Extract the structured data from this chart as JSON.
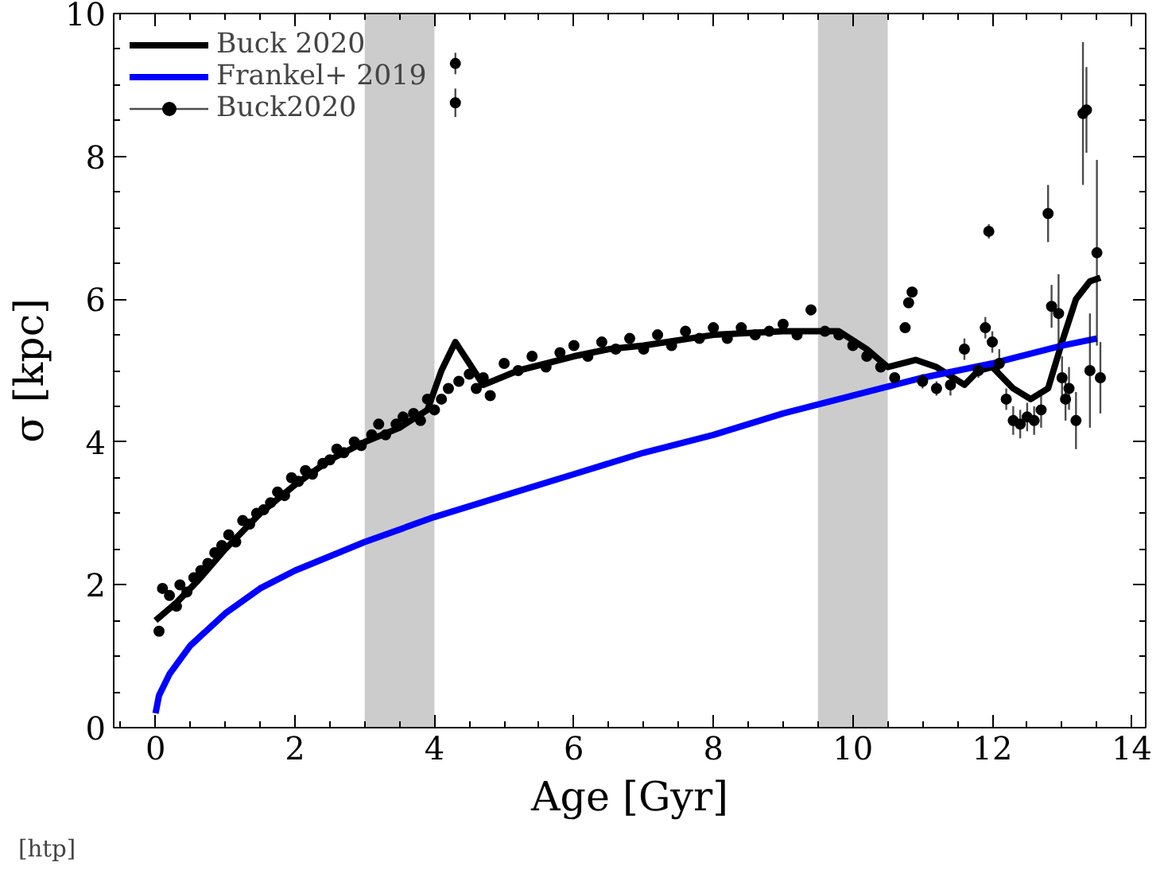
{
  "chart_data": {
    "type": "line",
    "xlabel": "Age [Gyr]",
    "ylabel": "σ [kpc]",
    "xlim": [
      -0.6,
      14.2
    ],
    "ylim": [
      0,
      10
    ],
    "xticks": [
      0,
      2,
      4,
      6,
      8,
      10,
      12,
      14
    ],
    "yticks": [
      0,
      2,
      4,
      6,
      8,
      10
    ],
    "grid": false,
    "legend": "top left",
    "bands": [
      {
        "axis": "x",
        "from": 3,
        "to": 4,
        "color": "#cccccc"
      },
      {
        "axis": "x",
        "from": 9.5,
        "to": 10.5,
        "color": "#cccccc"
      }
    ],
    "annotations": [
      "[htp]"
    ],
    "series": [
      {
        "name": "Buck 2020",
        "color": "#000000",
        "x": [
          0,
          0.3,
          0.6,
          1,
          1.5,
          2,
          2.5,
          3,
          3.5,
          3.9,
          4.1,
          4.3,
          4.5,
          4.7,
          5.2,
          6,
          6.5,
          7,
          8,
          9,
          9.8,
          10.2,
          10.5,
          10.9,
          11.2,
          11.6,
          11.8,
          12,
          12.3,
          12.55,
          12.8,
          13,
          13.2,
          13.4,
          13.55
        ],
        "values": [
          1.5,
          1.75,
          2.05,
          2.5,
          3.0,
          3.4,
          3.75,
          4.0,
          4.2,
          4.45,
          5.0,
          5.4,
          5.1,
          4.8,
          5.0,
          5.2,
          5.3,
          5.35,
          5.5,
          5.55,
          5.55,
          5.3,
          5.05,
          5.15,
          5.05,
          4.8,
          5.0,
          5.05,
          4.75,
          4.6,
          4.75,
          5.4,
          6.0,
          6.25,
          6.3
        ]
      },
      {
        "name": "Frankel+ 2019",
        "color": "#0000ff",
        "x": [
          0,
          0.05,
          0.2,
          0.5,
          1,
          1.5,
          2,
          3,
          4,
          5,
          6,
          7,
          8,
          9,
          10,
          11,
          12,
          13,
          13.5
        ],
        "values": [
          0.2,
          0.45,
          0.75,
          1.15,
          1.6,
          1.95,
          2.2,
          2.6,
          2.95,
          3.25,
          3.55,
          3.85,
          4.1,
          4.4,
          4.65,
          4.9,
          5.1,
          5.35,
          5.45
        ]
      },
      {
        "name": "Buck2020",
        "type": "scatter",
        "marker": "circle",
        "color": "#000000",
        "x": [
          0.05,
          0.1,
          0.2,
          0.3,
          0.35,
          0.45,
          0.55,
          0.65,
          0.75,
          0.85,
          0.95,
          1.05,
          1.15,
          1.25,
          1.35,
          1.45,
          1.55,
          1.65,
          1.75,
          1.85,
          1.95,
          2.05,
          2.15,
          2.25,
          2.4,
          2.5,
          2.6,
          2.7,
          2.85,
          2.95,
          3.1,
          3.2,
          3.3,
          3.45,
          3.55,
          3.7,
          3.8,
          3.9,
          4.0,
          4.1,
          4.2,
          4.3,
          4.3,
          4.35,
          4.5,
          4.6,
          4.7,
          4.8,
          5.0,
          5.2,
          5.4,
          5.6,
          5.8,
          6.0,
          6.2,
          6.4,
          6.6,
          6.8,
          7.0,
          7.2,
          7.4,
          7.6,
          7.8,
          8.0,
          8.2,
          8.4,
          8.6,
          8.8,
          9.0,
          9.2,
          9.4,
          9.6,
          9.8,
          10.0,
          10.2,
          10.4,
          10.6,
          10.75,
          10.8,
          10.85,
          11.0,
          11.2,
          11.4,
          11.6,
          11.8,
          11.9,
          11.95,
          12.0,
          12.1,
          12.2,
          12.3,
          12.4,
          12.5,
          12.6,
          12.7,
          12.8,
          12.85,
          12.95,
          13.0,
          13.05,
          13.1,
          13.2,
          13.3,
          13.35,
          13.4,
          13.5,
          13.55
        ],
        "values": [
          1.35,
          1.95,
          1.85,
          1.7,
          2.0,
          1.9,
          2.1,
          2.2,
          2.3,
          2.45,
          2.55,
          2.7,
          2.6,
          2.9,
          2.85,
          3.0,
          3.05,
          3.15,
          3.3,
          3.25,
          3.5,
          3.45,
          3.6,
          3.55,
          3.7,
          3.75,
          3.9,
          3.85,
          4.0,
          3.95,
          4.1,
          4.25,
          4.1,
          4.25,
          4.35,
          4.4,
          4.3,
          4.6,
          4.45,
          4.6,
          4.75,
          9.3,
          8.75,
          4.85,
          4.95,
          4.75,
          4.9,
          4.65,
          5.1,
          5.0,
          5.2,
          5.05,
          5.25,
          5.35,
          5.2,
          5.4,
          5.3,
          5.45,
          5.3,
          5.5,
          5.35,
          5.55,
          5.45,
          5.6,
          5.45,
          5.6,
          5.5,
          5.55,
          5.65,
          5.5,
          5.85,
          5.55,
          5.5,
          5.35,
          5.2,
          5.05,
          4.9,
          5.6,
          5.95,
          6.1,
          4.85,
          4.75,
          4.8,
          5.3,
          5.0,
          5.6,
          6.95,
          5.4,
          5.1,
          4.6,
          4.3,
          4.25,
          4.35,
          4.3,
          4.45,
          7.2,
          5.9,
          5.8,
          4.9,
          4.6,
          4.75,
          4.3,
          8.6,
          8.65,
          5.0,
          6.65,
          4.9
        ],
        "errors": [
          null,
          null,
          null,
          null,
          null,
          null,
          null,
          null,
          null,
          null,
          null,
          null,
          null,
          null,
          null,
          null,
          null,
          null,
          null,
          null,
          null,
          null,
          null,
          null,
          null,
          null,
          null,
          null,
          null,
          null,
          null,
          null,
          null,
          null,
          null,
          null,
          null,
          null,
          null,
          null,
          null,
          0.15,
          0.2,
          null,
          null,
          null,
          null,
          null,
          null,
          null,
          null,
          null,
          null,
          null,
          null,
          null,
          null,
          null,
          null,
          null,
          null,
          null,
          null,
          null,
          null,
          null,
          null,
          null,
          null,
          null,
          null,
          null,
          null,
          null,
          null,
          null,
          null,
          null,
          null,
          null,
          0.1,
          0.1,
          0.15,
          0.15,
          0.1,
          0.15,
          0.1,
          0.15,
          0.2,
          0.15,
          0.2,
          0.2,
          0.2,
          0.2,
          0.25,
          0.4,
          0.3,
          0.55,
          0.3,
          0.3,
          0.3,
          0.4,
          1.0,
          0.6,
          0.8,
          1.3,
          0.5
        ]
      }
    ]
  }
}
